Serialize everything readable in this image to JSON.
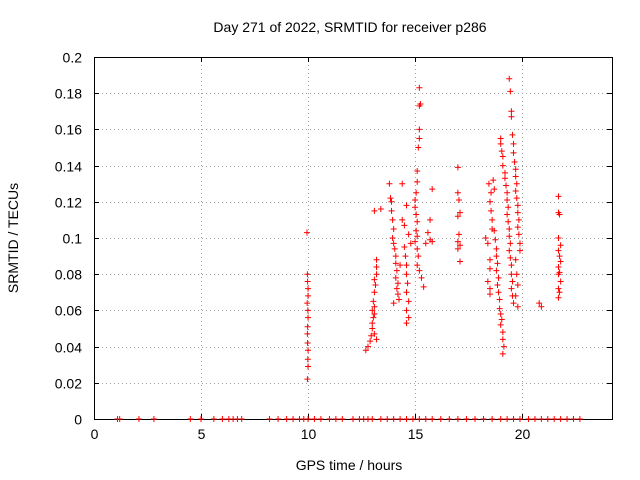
{
  "chart_data": {
    "type": "scatter",
    "title": "Day 271 of 2022, SRMTID for receiver p286",
    "xlabel": "GPS time / hours",
    "ylabel": "SRMTID / TECUs",
    "xlim": [
      0,
      24.2
    ],
    "ylim": [
      0,
      0.2
    ],
    "grid": true,
    "marker": "+",
    "x_ticks": [
      0,
      5,
      10,
      15,
      20
    ],
    "y_ticks": [
      "0",
      "0.02",
      "0.04",
      "0.06",
      "0.08",
      "0.1",
      "0.12",
      "0.14",
      "0.16",
      "0.18",
      "0.2"
    ],
    "series": [
      {
        "name": "SRMTID",
        "color": "#ff0000",
        "points": [
          [
            1.1,
            0
          ],
          [
            1.2,
            0
          ],
          [
            2.1,
            0
          ],
          [
            2.8,
            0
          ],
          [
            4.5,
            0
          ],
          [
            5.0,
            0
          ],
          [
            5.6,
            0
          ],
          [
            6.0,
            0
          ],
          [
            6.3,
            0
          ],
          [
            6.5,
            0
          ],
          [
            6.7,
            0
          ],
          [
            6.9,
            0
          ],
          [
            8.2,
            0
          ],
          [
            8.6,
            0
          ],
          [
            9.0,
            0
          ],
          [
            9.3,
            0
          ],
          [
            9.6,
            0
          ],
          [
            9.8,
            0
          ],
          [
            10.0,
            0
          ],
          [
            10.3,
            0
          ],
          [
            10.6,
            0
          ],
          [
            11.0,
            0
          ],
          [
            11.3,
            0
          ],
          [
            11.6,
            0
          ],
          [
            12.1,
            0
          ],
          [
            12.4,
            0
          ],
          [
            12.6,
            0
          ],
          [
            12.8,
            0
          ],
          [
            13.0,
            0
          ],
          [
            13.4,
            0
          ],
          [
            13.7,
            0
          ],
          [
            14.0,
            0
          ],
          [
            14.3,
            0
          ],
          [
            14.6,
            0
          ],
          [
            14.9,
            0
          ],
          [
            15.2,
            0
          ],
          [
            15.5,
            0
          ],
          [
            15.8,
            0
          ],
          [
            16.2,
            0
          ],
          [
            16.6,
            0
          ],
          [
            17.0,
            0
          ],
          [
            17.4,
            0
          ],
          [
            17.8,
            0
          ],
          [
            18.2,
            0
          ],
          [
            18.6,
            0
          ],
          [
            19.0,
            0
          ],
          [
            19.3,
            0
          ],
          [
            19.6,
            0
          ],
          [
            19.9,
            0
          ],
          [
            20.3,
            0
          ],
          [
            20.6,
            0
          ],
          [
            20.9,
            0
          ],
          [
            21.2,
            0
          ],
          [
            21.5,
            0
          ],
          [
            21.8,
            0
          ],
          [
            22.1,
            0
          ],
          [
            22.4,
            0
          ],
          [
            22.7,
            0
          ],
          [
            9.95,
            0.103
          ],
          [
            9.97,
            0.08
          ],
          [
            9.98,
            0.076
          ],
          [
            10.0,
            0.072
          ],
          [
            10.0,
            0.068
          ],
          [
            9.96,
            0.064
          ],
          [
            9.99,
            0.06
          ],
          [
            10.0,
            0.056
          ],
          [
            9.98,
            0.051
          ],
          [
            9.97,
            0.047
          ],
          [
            9.98,
            0.042
          ],
          [
            10.0,
            0.038
          ],
          [
            9.99,
            0.033
          ],
          [
            10.0,
            0.029
          ],
          [
            9.97,
            0.022
          ],
          [
            12.7,
            0.038
          ],
          [
            12.8,
            0.04
          ],
          [
            12.9,
            0.043
          ],
          [
            12.95,
            0.046
          ],
          [
            13.0,
            0.05
          ],
          [
            13.0,
            0.053
          ],
          [
            13.05,
            0.056
          ],
          [
            13.1,
            0.058
          ],
          [
            13.0,
            0.06
          ],
          [
            13.1,
            0.062
          ],
          [
            13.05,
            0.065
          ],
          [
            13.1,
            0.07
          ],
          [
            13.15,
            0.074
          ],
          [
            13.1,
            0.077
          ],
          [
            13.2,
            0.08
          ],
          [
            13.2,
            0.084
          ],
          [
            13.2,
            0.088
          ],
          [
            13.1,
            0.115
          ],
          [
            13.4,
            0.116
          ],
          [
            13.1,
            0.047
          ],
          [
            13.2,
            0.044
          ],
          [
            13.8,
            0.13
          ],
          [
            13.85,
            0.122
          ],
          [
            13.9,
            0.12
          ],
          [
            13.9,
            0.115
          ],
          [
            13.95,
            0.11
          ],
          [
            14.0,
            0.105
          ],
          [
            13.95,
            0.1
          ],
          [
            14.0,
            0.097
          ],
          [
            14.05,
            0.094
          ],
          [
            14.1,
            0.09
          ],
          [
            14.1,
            0.086
          ],
          [
            14.15,
            0.082
          ],
          [
            14.1,
            0.078
          ],
          [
            14.2,
            0.075
          ],
          [
            14.15,
            0.072
          ],
          [
            14.2,
            0.069
          ],
          [
            14.25,
            0.066
          ],
          [
            14.0,
            0.064
          ],
          [
            14.3,
            0.085
          ],
          [
            14.4,
            0.11
          ],
          [
            14.5,
            0.107
          ],
          [
            14.5,
            0.095
          ],
          [
            14.55,
            0.09
          ],
          [
            14.6,
            0.085
          ],
          [
            14.6,
            0.08
          ],
          [
            14.65,
            0.075
          ],
          [
            14.6,
            0.07
          ],
          [
            14.7,
            0.065
          ],
          [
            14.6,
            0.06
          ],
          [
            14.7,
            0.056
          ],
          [
            14.6,
            0.053
          ],
          [
            14.6,
            0.118
          ],
          [
            14.7,
            0.102
          ],
          [
            14.8,
            0.097
          ],
          [
            14.4,
            0.13
          ],
          [
            15.0,
            0.121
          ],
          [
            15.0,
            0.117
          ],
          [
            15.05,
            0.113
          ],
          [
            15.1,
            0.109
          ],
          [
            15.05,
            0.104
          ],
          [
            15.1,
            0.101
          ],
          [
            15.0,
            0.098
          ],
          [
            15.1,
            0.094
          ],
          [
            15.15,
            0.09
          ],
          [
            15.1,
            0.085
          ],
          [
            15.2,
            0.082
          ],
          [
            15.05,
            0.125
          ],
          [
            15.1,
            0.131
          ],
          [
            15.1,
            0.137
          ],
          [
            15.15,
            0.15
          ],
          [
            15.2,
            0.155
          ],
          [
            15.2,
            0.16
          ],
          [
            15.2,
            0.173
          ],
          [
            15.25,
            0.174
          ],
          [
            15.2,
            0.183
          ],
          [
            15.3,
            0.078
          ],
          [
            15.4,
            0.073
          ],
          [
            15.5,
            0.097
          ],
          [
            15.6,
            0.103
          ],
          [
            15.7,
            0.11
          ],
          [
            15.7,
            0.099
          ],
          [
            15.8,
            0.127
          ],
          [
            15.8,
            0.098
          ],
          [
            17.0,
            0.139
          ],
          [
            17.0,
            0.125
          ],
          [
            17.05,
            0.121
          ],
          [
            17.1,
            0.114
          ],
          [
            17.0,
            0.112
          ],
          [
            17.05,
            0.102
          ],
          [
            17.0,
            0.098
          ],
          [
            17.1,
            0.096
          ],
          [
            17.0,
            0.094
          ],
          [
            17.1,
            0.087
          ],
          [
            18.3,
            0.1
          ],
          [
            18.4,
            0.097
          ],
          [
            18.5,
            0.088
          ],
          [
            18.5,
            0.083
          ],
          [
            18.4,
            0.076
          ],
          [
            18.5,
            0.072
          ],
          [
            18.5,
            0.069
          ],
          [
            18.45,
            0.13
          ],
          [
            18.55,
            0.125
          ],
          [
            18.5,
            0.12
          ],
          [
            18.55,
            0.115
          ],
          [
            18.6,
            0.11
          ],
          [
            18.6,
            0.105
          ],
          [
            18.65,
            0.132
          ],
          [
            18.7,
            0.127
          ],
          [
            18.7,
            0.104
          ],
          [
            18.75,
            0.099
          ],
          [
            18.8,
            0.094
          ],
          [
            18.8,
            0.09
          ],
          [
            18.85,
            0.086
          ],
          [
            18.8,
            0.082
          ],
          [
            18.9,
            0.078
          ],
          [
            18.85,
            0.074
          ],
          [
            18.9,
            0.07
          ],
          [
            18.95,
            0.066
          ],
          [
            18.95,
            0.061
          ],
          [
            19.0,
            0.058
          ],
          [
            19.05,
            0.055
          ],
          [
            19.0,
            0.052
          ],
          [
            19.1,
            0.048
          ],
          [
            19.1,
            0.044
          ],
          [
            19.15,
            0.04
          ],
          [
            19.1,
            0.036
          ],
          [
            19.0,
            0.155
          ],
          [
            19.0,
            0.152
          ],
          [
            19.05,
            0.148
          ],
          [
            19.1,
            0.145
          ],
          [
            19.1,
            0.14
          ],
          [
            19.2,
            0.136
          ],
          [
            19.2,
            0.133
          ],
          [
            19.25,
            0.129
          ],
          [
            19.3,
            0.125
          ],
          [
            19.3,
            0.121
          ],
          [
            19.35,
            0.117
          ],
          [
            19.3,
            0.113
          ],
          [
            19.35,
            0.109
          ],
          [
            19.4,
            0.105
          ],
          [
            19.4,
            0.101
          ],
          [
            19.45,
            0.097
          ],
          [
            19.4,
            0.093
          ],
          [
            19.45,
            0.089
          ],
          [
            19.5,
            0.085
          ],
          [
            19.5,
            0.08
          ],
          [
            19.55,
            0.076
          ],
          [
            19.5,
            0.072
          ],
          [
            19.55,
            0.068
          ],
          [
            19.6,
            0.064
          ],
          [
            19.4,
            0.188
          ],
          [
            19.45,
            0.181
          ],
          [
            19.5,
            0.17
          ],
          [
            19.5,
            0.167
          ],
          [
            19.55,
            0.157
          ],
          [
            19.6,
            0.152
          ],
          [
            19.6,
            0.147
          ],
          [
            19.65,
            0.142
          ],
          [
            19.7,
            0.138
          ],
          [
            19.7,
            0.134
          ],
          [
            19.75,
            0.13
          ],
          [
            19.7,
            0.126
          ],
          [
            19.75,
            0.122
          ],
          [
            19.8,
            0.118
          ],
          [
            19.8,
            0.114
          ],
          [
            19.85,
            0.11
          ],
          [
            19.8,
            0.106
          ],
          [
            19.85,
            0.102
          ],
          [
            19.9,
            0.097
          ],
          [
            19.9,
            0.093
          ],
          [
            19.7,
            0.088
          ],
          [
            19.75,
            0.08
          ],
          [
            19.8,
            0.074
          ],
          [
            19.7,
            0.068
          ],
          [
            19.8,
            0.062
          ],
          [
            20.8,
            0.064
          ],
          [
            20.9,
            0.062
          ],
          [
            21.7,
            0.123
          ],
          [
            21.7,
            0.114
          ],
          [
            21.75,
            0.113
          ],
          [
            21.7,
            0.1
          ],
          [
            21.8,
            0.096
          ],
          [
            21.7,
            0.093
          ],
          [
            21.75,
            0.09
          ],
          [
            21.8,
            0.087
          ],
          [
            21.7,
            0.084
          ],
          [
            21.75,
            0.081
          ],
          [
            21.7,
            0.08
          ],
          [
            21.8,
            0.076
          ],
          [
            21.7,
            0.072
          ],
          [
            21.75,
            0.07
          ],
          [
            21.7,
            0.067
          ]
        ]
      }
    ]
  }
}
